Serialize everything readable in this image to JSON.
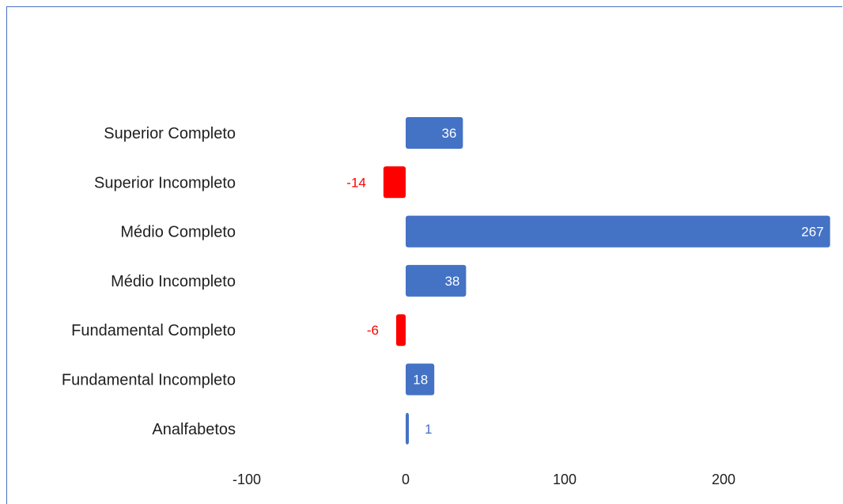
{
  "chart_data": {
    "type": "bar",
    "orientation": "horizontal",
    "title": "",
    "xlabel": "",
    "ylabel": "",
    "categories": [
      "Superior Completo",
      "Superior Incompleto",
      "Médio Completo",
      "Médio Incompleto",
      "Fundamental Completo",
      "Fundamental Incompleto",
      "Analfabetos"
    ],
    "values": [
      36,
      -14,
      267,
      38,
      -6,
      18,
      1
    ],
    "xlim": [
      -100,
      270
    ],
    "xticks": [
      -100,
      0,
      100,
      200
    ],
    "xtick_labels": [
      "-100",
      "0",
      "100",
      "200"
    ],
    "grid": false,
    "legend": "none",
    "colors": {
      "positive": "#4472c4",
      "negative": "#ff0000",
      "label_inside": "#ffffff",
      "label_outside_positive": "#4472c4",
      "label_outside_negative": "#ff0000",
      "frame": "#4472c4"
    }
  }
}
